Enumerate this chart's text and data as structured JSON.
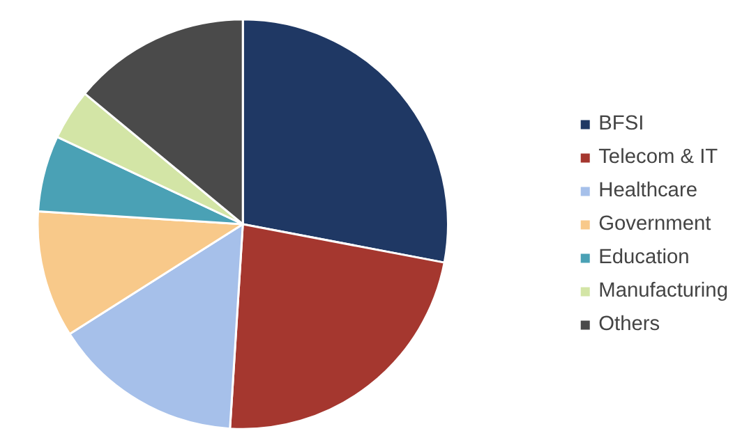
{
  "chart_data": {
    "type": "pie",
    "categories": [
      "BFSI",
      "Telecom & IT",
      "Healthcare",
      "Government",
      "Education",
      "Manufacturing",
      "Others"
    ],
    "values": [
      28,
      23,
      15,
      10,
      6,
      4,
      14
    ],
    "colors": [
      "#1f3864",
      "#a5372f",
      "#a6c0ea",
      "#f8c98a",
      "#4aa1b5",
      "#d3e5a6",
      "#4a4a4a"
    ],
    "legend": "right"
  }
}
